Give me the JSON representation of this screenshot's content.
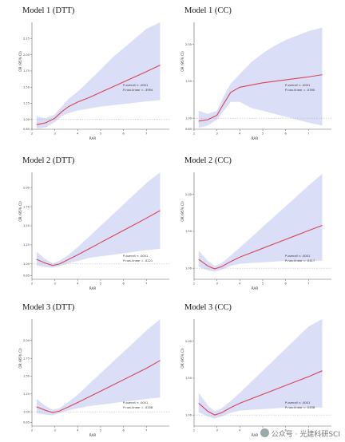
{
  "chart_data": [
    {
      "type": "line",
      "title": "Model 1 (DTT)",
      "xlabel": "RAR",
      "ylabel": "OR (95% CI)",
      "xlim": [
        2,
        8
      ],
      "ylim": [
        0.85,
        2.5
      ],
      "x_ticks": [
        "2",
        "3",
        "4",
        "5",
        "6",
        "7"
      ],
      "y_ticks": [
        "0.85",
        "1.00",
        "1.25",
        "1.50",
        "1.75",
        "2.00",
        "2.25"
      ],
      "ref_y": 1.0,
      "x": [
        2.2,
        2.6,
        3.0,
        3.3,
        3.6,
        4.0,
        4.5,
        5.0,
        5.5,
        6.0,
        6.5,
        7.0,
        7.6
      ],
      "y": [
        0.92,
        0.95,
        1.02,
        1.12,
        1.2,
        1.27,
        1.34,
        1.42,
        1.5,
        1.58,
        1.66,
        1.74,
        1.84
      ],
      "lower": [
        0.86,
        0.88,
        0.96,
        1.05,
        1.1,
        1.14,
        1.17,
        1.2,
        1.22,
        1.24,
        1.26,
        1.28,
        1.3
      ],
      "upper": [
        1.05,
        1.02,
        1.08,
        1.2,
        1.32,
        1.43,
        1.6,
        1.77,
        1.95,
        2.1,
        2.25,
        2.4,
        2.5
      ],
      "annotations": [
        "P-overall < .0001",
        "P-non-linear = .3954"
      ]
    },
    {
      "type": "line",
      "title": "Model 1 (CC)",
      "xlabel": "RAR",
      "ylabel": "OR (95% CI)",
      "xlim": [
        2,
        8
      ],
      "ylim": [
        0.85,
        2.3
      ],
      "x_ticks": [
        "2",
        "3",
        "4",
        "5",
        "6",
        "7"
      ],
      "y_ticks": [
        "0.85",
        "1.00",
        "1.50",
        "2.00"
      ],
      "ref_y": 1.0,
      "x": [
        2.2,
        2.6,
        3.0,
        3.3,
        3.6,
        4.0,
        4.5,
        5.0,
        5.5,
        6.0,
        6.5,
        7.0,
        7.6
      ],
      "y": [
        0.96,
        0.98,
        1.04,
        1.2,
        1.35,
        1.42,
        1.45,
        1.48,
        1.5,
        1.52,
        1.54,
        1.56,
        1.59
      ],
      "lower": [
        0.87,
        0.9,
        0.98,
        1.1,
        1.22,
        1.22,
        1.14,
        1.1,
        1.06,
        1.02,
        0.98,
        0.94,
        0.9
      ],
      "upper": [
        1.1,
        1.06,
        1.1,
        1.3,
        1.47,
        1.6,
        1.76,
        1.88,
        1.98,
        2.06,
        2.12,
        2.18,
        2.23
      ],
      "annotations": [
        "P-overall < .0001",
        "P-non-linear = .0390"
      ]
    },
    {
      "type": "line",
      "title": "Model 2 (DTT)",
      "xlabel": "RAR",
      "ylabel": "OR (95% CI)",
      "xlim": [
        2,
        8
      ],
      "ylim": [
        0.8,
        2.2
      ],
      "x_ticks": [
        "2",
        "3",
        "4",
        "5",
        "6",
        "7"
      ],
      "y_ticks": [
        "0.85",
        "1.00",
        "1.25",
        "1.50",
        "1.75",
        "2.00"
      ],
      "ref_y": 1.0,
      "x": [
        2.2,
        2.6,
        2.9,
        3.2,
        3.6,
        4.0,
        4.5,
        5.0,
        5.5,
        6.0,
        6.5,
        7.0,
        7.6
      ],
      "y": [
        1.06,
        1.01,
        0.98,
        1.0,
        1.06,
        1.12,
        1.2,
        1.28,
        1.36,
        1.44,
        1.52,
        1.6,
        1.7
      ],
      "lower": [
        0.98,
        0.96,
        0.95,
        0.97,
        1.01,
        1.04,
        1.08,
        1.1,
        1.12,
        1.14,
        1.16,
        1.18,
        1.2
      ],
      "upper": [
        1.16,
        1.06,
        1.01,
        1.04,
        1.12,
        1.22,
        1.36,
        1.5,
        1.64,
        1.78,
        1.92,
        2.06,
        2.2
      ],
      "annotations": [
        "P-overall < .0001",
        "P-non-linear = .0221"
      ]
    },
    {
      "type": "line",
      "title": "Model 2 (CC)",
      "xlabel": "RAR",
      "ylabel": "OR (95% CI)",
      "xlim": [
        2,
        8
      ],
      "ylim": [
        0.85,
        2.3
      ],
      "x_ticks": [
        "2",
        "3",
        "4",
        "5",
        "6",
        "7"
      ],
      "y_ticks": [
        "1.00",
        "1.50",
        "2.00"
      ],
      "ref_y": 1.0,
      "x": [
        2.2,
        2.6,
        2.9,
        3.2,
        3.6,
        4.0,
        4.5,
        5.0,
        5.5,
        6.0,
        6.5,
        7.0,
        7.6
      ],
      "y": [
        1.12,
        1.03,
        0.99,
        1.02,
        1.09,
        1.15,
        1.21,
        1.27,
        1.33,
        1.39,
        1.45,
        1.51,
        1.58
      ],
      "lower": [
        1.02,
        0.97,
        0.95,
        0.98,
        1.03,
        1.06,
        1.07,
        1.08,
        1.09,
        1.1,
        1.1,
        1.1,
        1.1
      ],
      "upper": [
        1.24,
        1.1,
        1.03,
        1.07,
        1.17,
        1.28,
        1.42,
        1.56,
        1.7,
        1.84,
        1.98,
        2.12,
        2.28
      ],
      "annotations": [
        "P-overall < .0001",
        "P-non-linear = .0417"
      ]
    },
    {
      "type": "line",
      "title": "Model 3 (DTT)",
      "xlabel": "RAR",
      "ylabel": "OR (95% CI)",
      "xlim": [
        2,
        8
      ],
      "ylim": [
        0.8,
        2.3
      ],
      "x_ticks": [
        "2",
        "3",
        "4",
        "5",
        "6",
        "7"
      ],
      "y_ticks": [
        "0.85",
        "1.00",
        "1.25",
        "1.50",
        "1.75",
        "2.00"
      ],
      "ref_y": 1.0,
      "x": [
        2.2,
        2.6,
        2.9,
        3.2,
        3.6,
        4.0,
        4.5,
        5.0,
        5.5,
        6.0,
        6.5,
        7.0,
        7.6
      ],
      "y": [
        1.07,
        1.02,
        0.99,
        1.01,
        1.07,
        1.13,
        1.21,
        1.29,
        1.37,
        1.45,
        1.53,
        1.61,
        1.72
      ],
      "lower": [
        0.98,
        0.96,
        0.95,
        0.98,
        1.02,
        1.05,
        1.08,
        1.1,
        1.12,
        1.14,
        1.16,
        1.18,
        1.2
      ],
      "upper": [
        1.18,
        1.08,
        1.03,
        1.05,
        1.14,
        1.24,
        1.39,
        1.54,
        1.69,
        1.84,
        1.99,
        2.14,
        2.3
      ],
      "annotations": [
        "P-overall < .0001",
        "P-non-linear = .0208"
      ]
    },
    {
      "type": "line",
      "title": "Model 3 (CC)",
      "xlabel": "RAR",
      "ylabel": "OR (95% CI)",
      "xlim": [
        2,
        8
      ],
      "ylim": [
        0.85,
        2.3
      ],
      "x_ticks": [
        "2",
        "3",
        "4",
        "5",
        "6",
        "7"
      ],
      "y_ticks": [
        "1.00",
        "1.50",
        "2.00"
      ],
      "ref_y": 1.0,
      "x": [
        2.2,
        2.6,
        2.9,
        3.2,
        3.6,
        4.0,
        4.5,
        5.0,
        5.5,
        6.0,
        6.5,
        7.0,
        7.6
      ],
      "y": [
        1.16,
        1.05,
        1.0,
        1.03,
        1.1,
        1.16,
        1.22,
        1.28,
        1.34,
        1.4,
        1.46,
        1.52,
        1.6
      ],
      "lower": [
        1.04,
        0.98,
        0.95,
        0.98,
        1.03,
        1.06,
        1.07,
        1.08,
        1.09,
        1.1,
        1.1,
        1.1,
        1.1
      ],
      "upper": [
        1.3,
        1.13,
        1.05,
        1.09,
        1.19,
        1.3,
        1.45,
        1.6,
        1.75,
        1.9,
        2.05,
        2.2,
        2.3
      ],
      "annotations": [
        "P-overall < .0001",
        "P-non-linear = .0458"
      ]
    }
  ],
  "watermark": {
    "text": "公众号 · 光建科研SCI",
    "icon": "wechat-icon"
  }
}
